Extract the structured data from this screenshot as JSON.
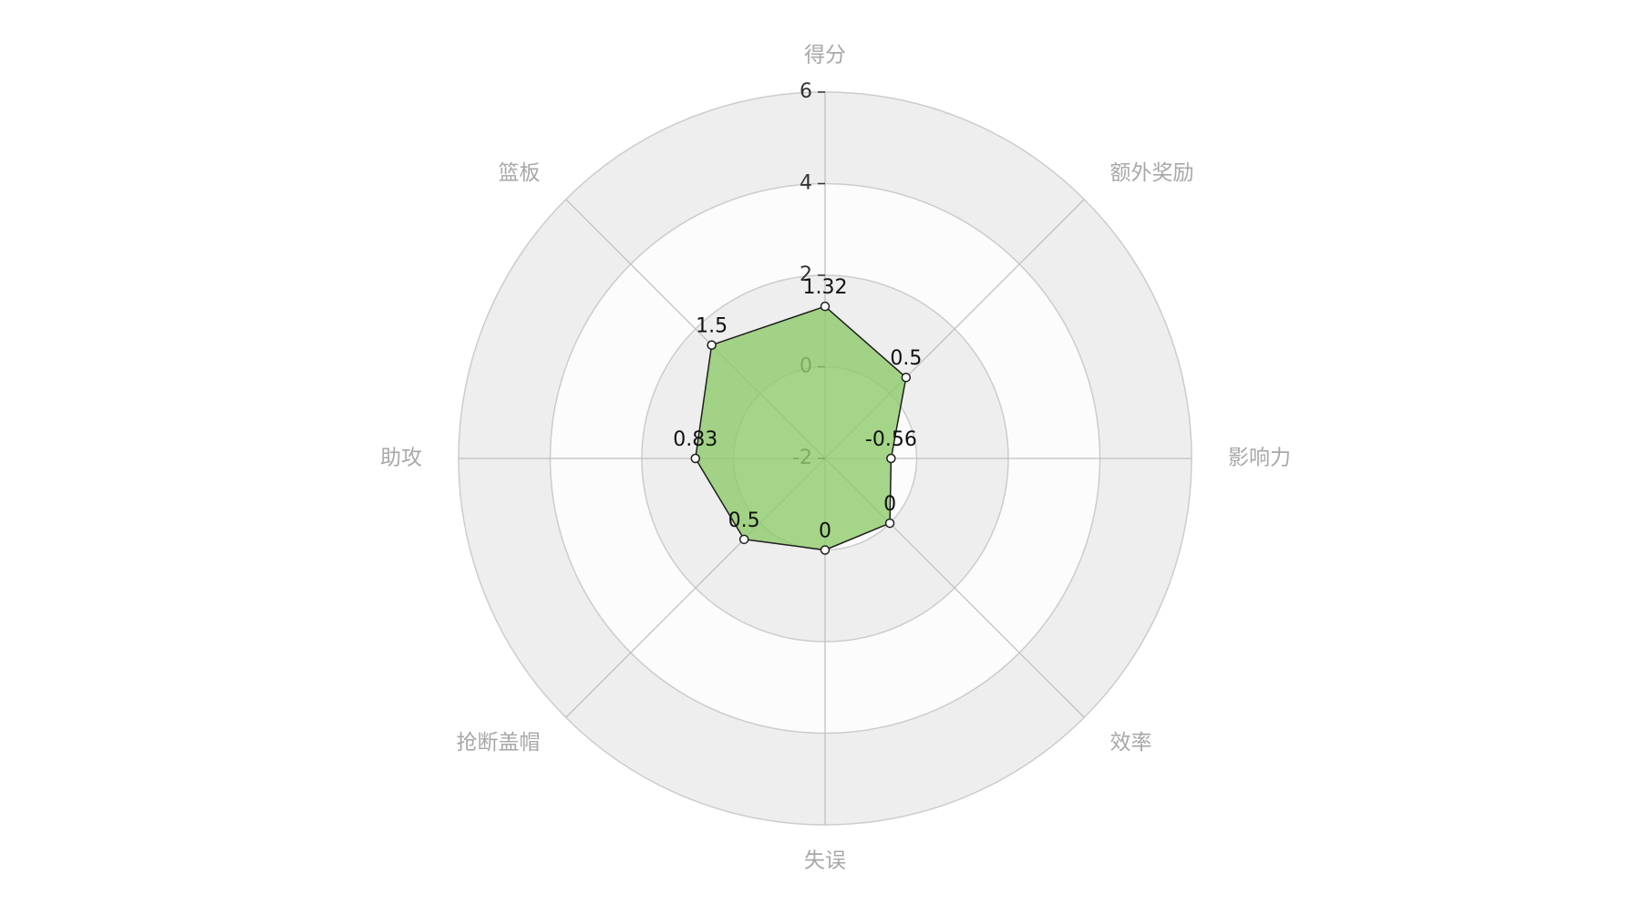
{
  "chart_data": {
    "type": "radar",
    "indicators": [
      "得分",
      "额外奖励",
      "影响力",
      "效率",
      "失误",
      "抢断盖帽",
      "助攻",
      "篮板"
    ],
    "series": [
      {
        "values": [
          1.32,
          0.5,
          -0.56,
          0,
          0,
          0.5,
          0.83,
          1.5
        ],
        "value_labels": [
          "1.32",
          "0.5",
          "-0.56",
          "0",
          "0",
          "0.5",
          "0.83",
          "1.5"
        ]
      }
    ],
    "range": [
      -2,
      6
    ],
    "ticks": [
      -2,
      0,
      2,
      4,
      6
    ],
    "tick_labels": [
      "-2",
      "0",
      "2",
      "4",
      "6"
    ],
    "shape": "circle",
    "split_area": true,
    "colors": {
      "area": "#8fcb6a",
      "line": "#1e1e1e",
      "point_fill": "#ffffff",
      "band_dark": "#eeeeee",
      "band_light": "#fcfcfc",
      "grid": "#cccccc",
      "spoke": "#c0c0c0",
      "axis_name": "#a8a8a8",
      "tick": "#333333"
    }
  }
}
